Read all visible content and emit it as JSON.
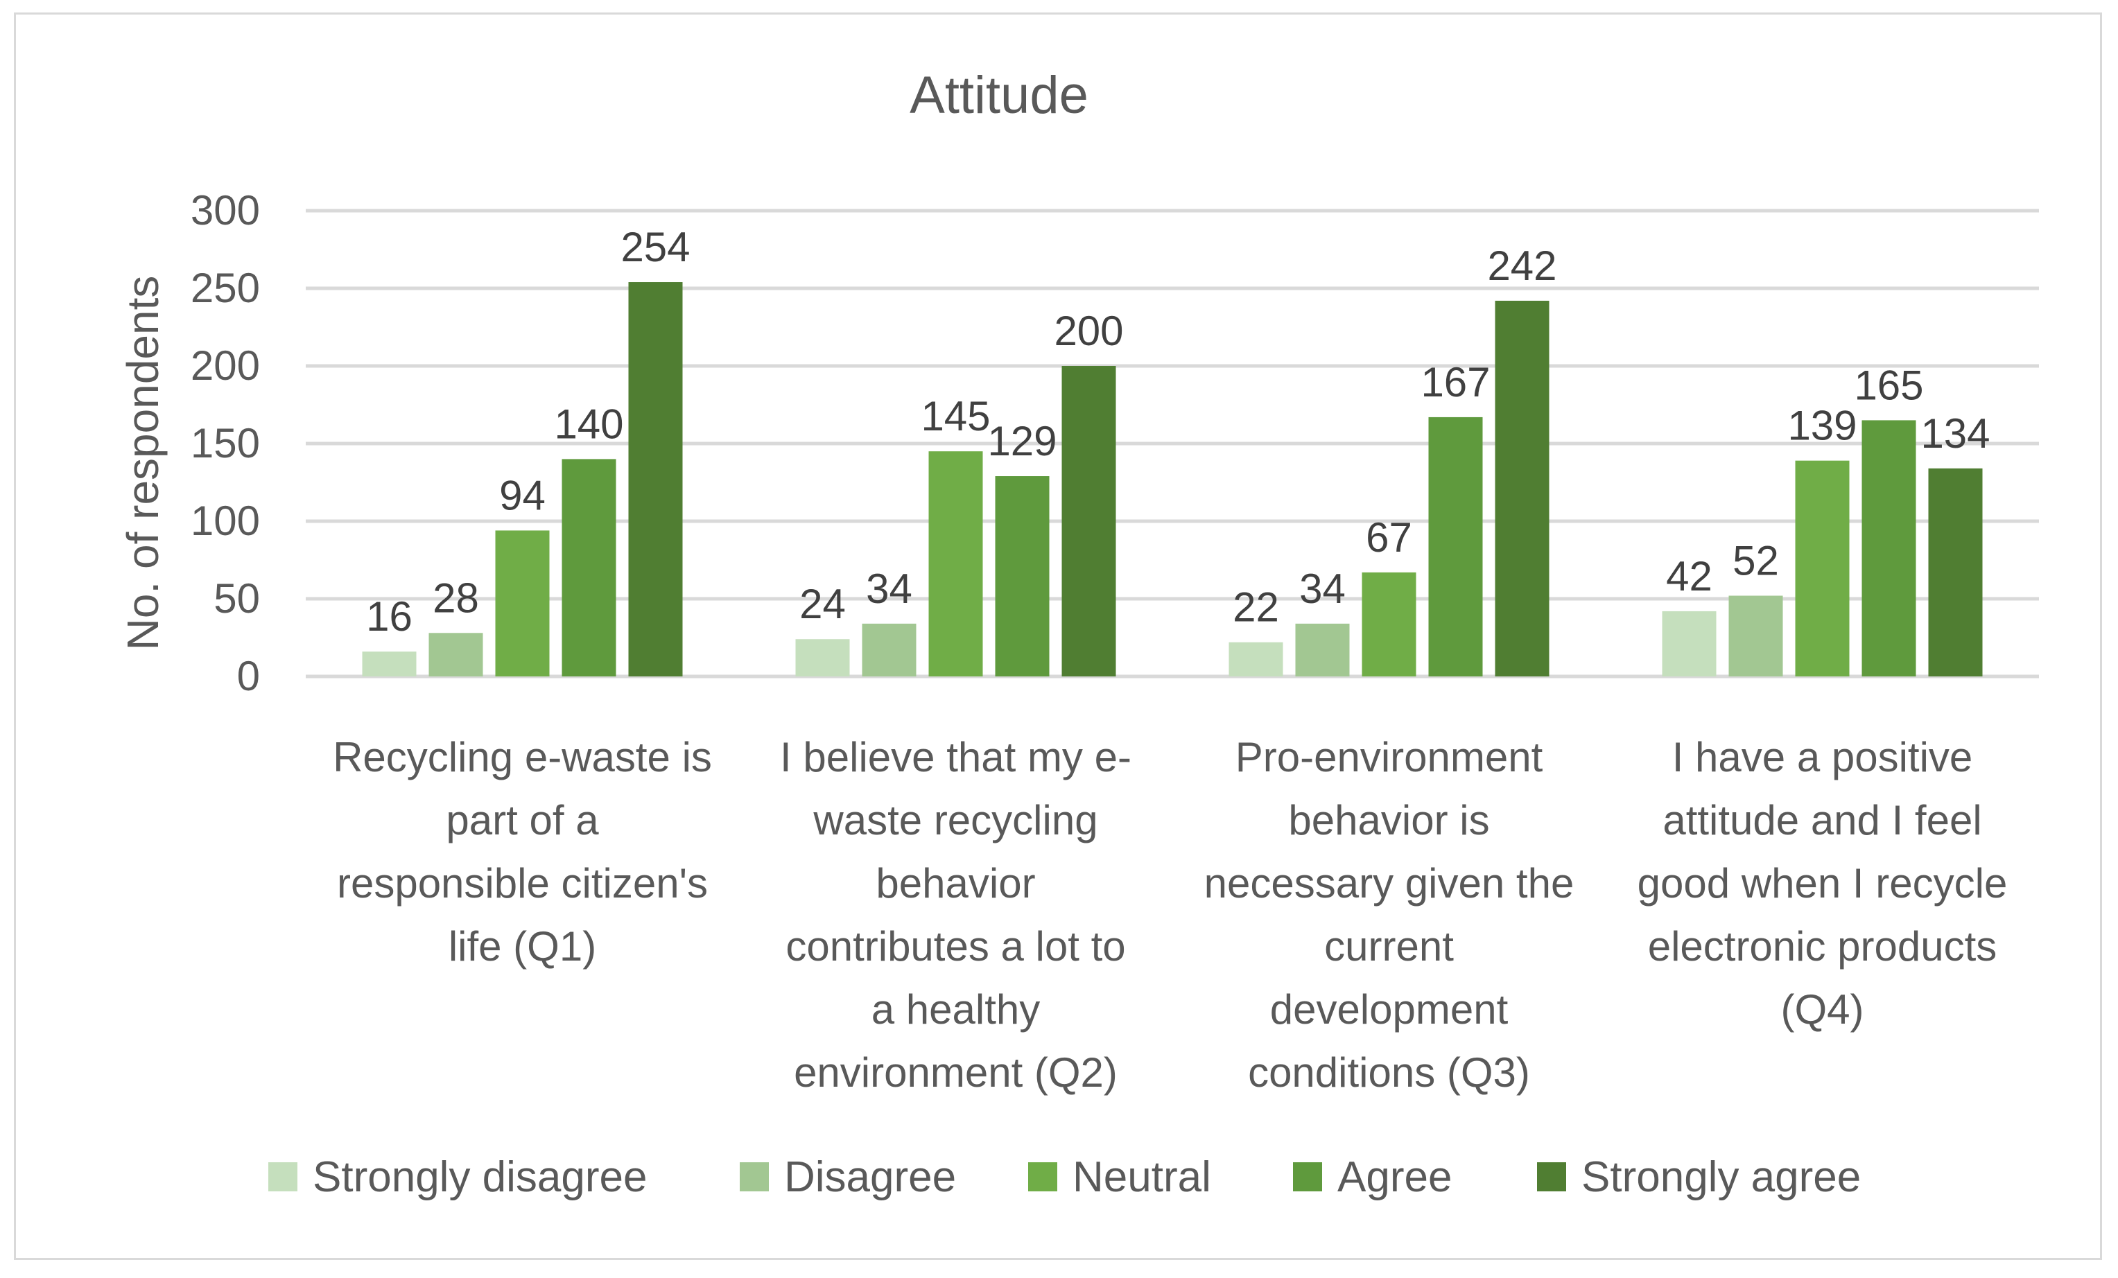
{
  "chart_data": {
    "type": "bar",
    "title": "Attitude",
    "xlabel": "",
    "ylabel": "No. of respondents",
    "ylim": [
      0,
      300
    ],
    "yticks": [
      0,
      50,
      100,
      150,
      200,
      250,
      300
    ],
    "grid": true,
    "legend_position": "bottom",
    "categories": [
      [
        "Recycling e-waste is",
        "part of a",
        "responsible citizen's",
        "life (Q1)"
      ],
      [
        "I believe that my e-",
        "waste recycling",
        "behavior",
        "contributes a lot to",
        "a healthy",
        "environment (Q2)"
      ],
      [
        "Pro-environment",
        "behavior is",
        "necessary given the",
        "current",
        "development",
        "conditions (Q3)"
      ],
      [
        "I have a positive",
        "attitude and I feel",
        "good when I recycle",
        "electronic products",
        "(Q4)"
      ]
    ],
    "series": [
      {
        "name": "Strongly disagree",
        "color": "#c5dfbd",
        "values": [
          16,
          24,
          22,
          42
        ]
      },
      {
        "name": "Disagree",
        "color": "#a2c792",
        "values": [
          28,
          34,
          34,
          52
        ]
      },
      {
        "name": "Neutral",
        "color": "#70ad47",
        "values": [
          94,
          145,
          67,
          139
        ]
      },
      {
        "name": "Agree",
        "color": "#5f9a3d",
        "values": [
          140,
          129,
          167,
          165
        ]
      },
      {
        "name": "Strongly agree",
        "color": "#507e32",
        "values": [
          254,
          200,
          242,
          134
        ]
      }
    ]
  }
}
